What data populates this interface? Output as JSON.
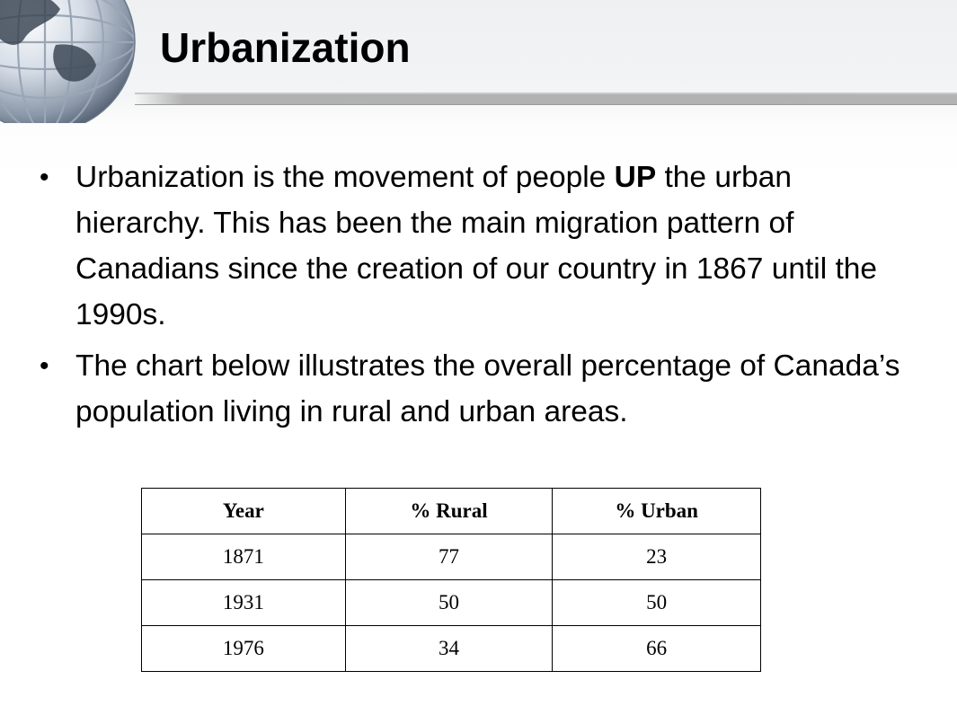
{
  "slide": {
    "title": "Urbanization",
    "bullets": [
      {
        "text_before": "Urbanization is the movement of people ",
        "emphasis": "UP",
        "text_after": " the urban hierarchy.  This has been the main migration pattern of Canadians since the creation of our country in 1867 until the 1990s."
      },
      {
        "text": "The chart below illustrates the overall percentage of Canada’s population living in rural and urban areas."
      }
    ],
    "bullet_glyph": "•",
    "decoration": {
      "icon": "globe-icon"
    }
  },
  "table": {
    "headers": [
      "Year",
      "% Rural",
      "% Urban"
    ],
    "rows": [
      [
        "1871",
        "77",
        "23"
      ],
      [
        "1931",
        "50",
        "50"
      ],
      [
        "1976",
        "34",
        "66"
      ]
    ]
  }
}
